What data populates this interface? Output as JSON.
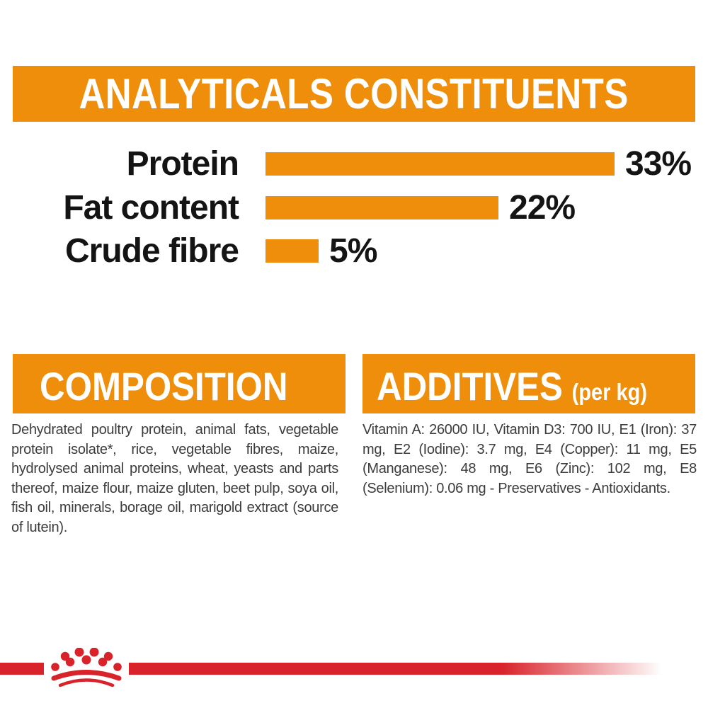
{
  "colors": {
    "orange": "#EE8E0B",
    "red": "#D8232A",
    "heading_text": "#FFFFFF",
    "chart_text": "#141414",
    "body_text": "#3C3C3B",
    "background": "#FFFFFF"
  },
  "analyticals": {
    "title": "ANALYTICALS CONSTITUENTS"
  },
  "chart_data": {
    "type": "bar",
    "orientation": "horizontal",
    "title": "ANALYTICALS CONSTITUENTS",
    "categories": [
      "Protein",
      "Fat content",
      "Crude fibre"
    ],
    "values": [
      33,
      22,
      5
    ],
    "unit": "%",
    "value_labels": [
      "33%",
      "22%",
      "5%"
    ],
    "xlim": [
      0,
      40
    ],
    "grid": "off",
    "legend": "none",
    "bar_color": "#EE8E0B"
  },
  "composition": {
    "title": "COMPOSITION",
    "text": "Dehydrated poultry protein, animal fats, vegetable protein isolate*, rice, vegetable fibres, maize, hydrolysed animal proteins, wheat, yeasts and parts thereof, maize flour, maize gluten, beet pulp, soya oil, fish oil, minerals, borage oil, marigold extract (source of lutein)."
  },
  "additives": {
    "title": "ADDITIVES",
    "title_suffix": "(per kg)",
    "text": "Vitamin A: 26000 IU, Vitamin D3: 700 IU, E1 (Iron): 37 mg, E2 (Iodine): 3.7 mg, E4 (Copper): 11 mg, E5 (Manganese): 48 mg, E6 (Zinc): 102 mg, E8 (Selenium): 0.06 mg - Preservatives - Antioxidants."
  },
  "footer": {
    "logo": "royal-canin-crown"
  }
}
